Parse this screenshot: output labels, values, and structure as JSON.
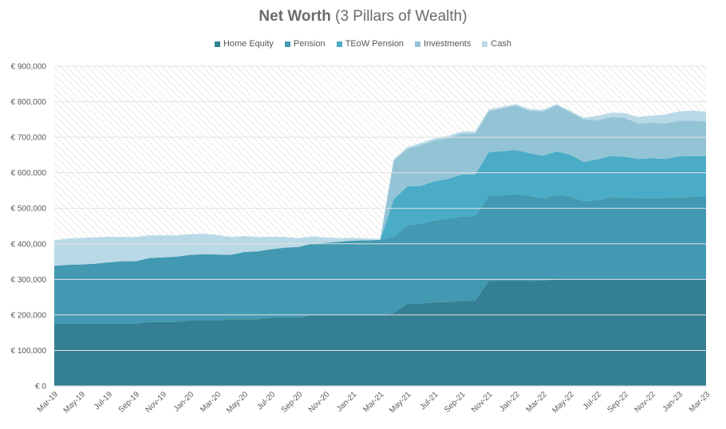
{
  "chart_data": {
    "type": "area",
    "stacked": true,
    "title": "Net Worth",
    "subtitle": "(3 Pillars of Wealth)",
    "xlabel": "",
    "ylabel": "",
    "ylim": [
      0,
      900000
    ],
    "y_ticks": [
      "€ 0",
      "€ 100,000",
      "€ 200,000",
      "€ 300,000",
      "€ 400,000",
      "€ 500,000",
      "€ 600,000",
      "€ 700,000",
      "€ 800,000",
      "€ 900,000"
    ],
    "y_tick_values": [
      0,
      100000,
      200000,
      300000,
      400000,
      500000,
      600000,
      700000,
      800000,
      900000
    ],
    "legend_position": "top",
    "x_tick_labels": [
      "Mar-19",
      "May-19",
      "Jul-19",
      "Sep-19",
      "Nov-19",
      "Jan-20",
      "Mar-20",
      "May-20",
      "Jul-20",
      "Sep-20",
      "Nov-20",
      "Jan-21",
      "Mar-21",
      "May-21",
      "Jul-21",
      "Sep-21",
      "Nov-21",
      "Jan-22",
      "Mar-22",
      "May-22",
      "Jul-22",
      "Sep-22",
      "Nov-22",
      "Jan-23",
      "Mar-23"
    ],
    "categories": [
      "Mar-19",
      "Apr-19",
      "May-19",
      "Jun-19",
      "Jul-19",
      "Aug-19",
      "Sep-19",
      "Oct-19",
      "Nov-19",
      "Dec-19",
      "Jan-20",
      "Feb-20",
      "Mar-20",
      "Apr-20",
      "May-20",
      "Jun-20",
      "Jul-20",
      "Aug-20",
      "Sep-20",
      "Oct-20",
      "Nov-20",
      "Dec-20",
      "Jan-21",
      "Feb-21",
      "Mar-21",
      "Apr-21",
      "May-21",
      "Jun-21",
      "Jul-21",
      "Aug-21",
      "Sep-21",
      "Oct-21",
      "Nov-21",
      "Dec-21",
      "Jan-22",
      "Feb-22",
      "Mar-22",
      "Apr-22",
      "May-22",
      "Jun-22",
      "Jul-22",
      "Aug-22",
      "Sep-22",
      "Oct-22",
      "Nov-22",
      "Dec-22",
      "Jan-23",
      "Feb-23",
      "Mar-23"
    ],
    "series": [
      {
        "name": "Home Equity",
        "color": "#357f94",
        "values": [
          175000,
          175000,
          175000,
          175000,
          175000,
          175000,
          175000,
          180000,
          180000,
          180000,
          185000,
          185000,
          185000,
          188000,
          188000,
          188000,
          192000,
          192000,
          192000,
          200000,
          200000,
          200000,
          200000,
          200000,
          200000,
          205000,
          232000,
          232000,
          236000,
          236000,
          240000,
          240000,
          295000,
          295000,
          295000,
          295000,
          297000,
          300000,
          300000,
          300000,
          300000,
          300000,
          300000,
          300000,
          300000,
          300000,
          300000,
          300000,
          300000
        ]
      },
      {
        "name": "Pension",
        "color": "#4299b1",
        "values": [
          163000,
          166000,
          167000,
          169000,
          173000,
          176000,
          176000,
          180000,
          182000,
          184000,
          184000,
          186000,
          185000,
          181000,
          189000,
          191000,
          193000,
          197000,
          199000,
          201000,
          203000,
          206000,
          209000,
          210000,
          211000,
          215000,
          220000,
          225000,
          230000,
          235000,
          237000,
          238000,
          240000,
          242000,
          245000,
          240000,
          231000,
          238000,
          233000,
          220000,
          223000,
          232000,
          230000,
          229000,
          229000,
          229000,
          231000,
          232000,
          232000
        ]
      },
      {
        "name": "TEoW Pension",
        "color": "#4aacc6",
        "values": [
          0,
          0,
          0,
          0,
          0,
          0,
          0,
          0,
          0,
          0,
          0,
          0,
          0,
          0,
          0,
          0,
          0,
          0,
          0,
          0,
          0,
          0,
          0,
          0,
          0,
          105000,
          110000,
          106000,
          110000,
          112000,
          118000,
          117000,
          123000,
          124000,
          124000,
          120000,
          120000,
          122000,
          118000,
          110000,
          115000,
          115000,
          115000,
          110000,
          112000,
          110000,
          115000,
          115000,
          115000
        ]
      },
      {
        "name": "Investments",
        "color": "#93c4d6",
        "values": [
          0,
          0,
          0,
          0,
          0,
          0,
          0,
          0,
          0,
          0,
          0,
          0,
          0,
          0,
          0,
          0,
          0,
          0,
          0,
          0,
          0,
          0,
          0,
          0,
          0,
          110000,
          105000,
          115000,
          115000,
          115000,
          115000,
          115000,
          115000,
          120000,
          125000,
          120000,
          125000,
          130000,
          120000,
          120000,
          110000,
          110000,
          110000,
          100000,
          100000,
          100000,
          100000,
          100000,
          97000
        ]
      },
      {
        "name": "Cash",
        "color": "#b9d9e6",
        "values": [
          72000,
          74000,
          75000,
          74000,
          72000,
          68000,
          68000,
          64000,
          62000,
          60000,
          58000,
          57000,
          55000,
          50000,
          45000,
          40000,
          35000,
          30000,
          25000,
          20000,
          15000,
          10000,
          8000,
          5000,
          3000,
          3000,
          5000,
          6000,
          6000,
          6000,
          6000,
          6000,
          5000,
          5000,
          4000,
          4000,
          4000,
          3000,
          3000,
          5000,
          12000,
          12000,
          13000,
          18000,
          20000,
          25000,
          27000,
          28000,
          28000
        ]
      }
    ]
  }
}
